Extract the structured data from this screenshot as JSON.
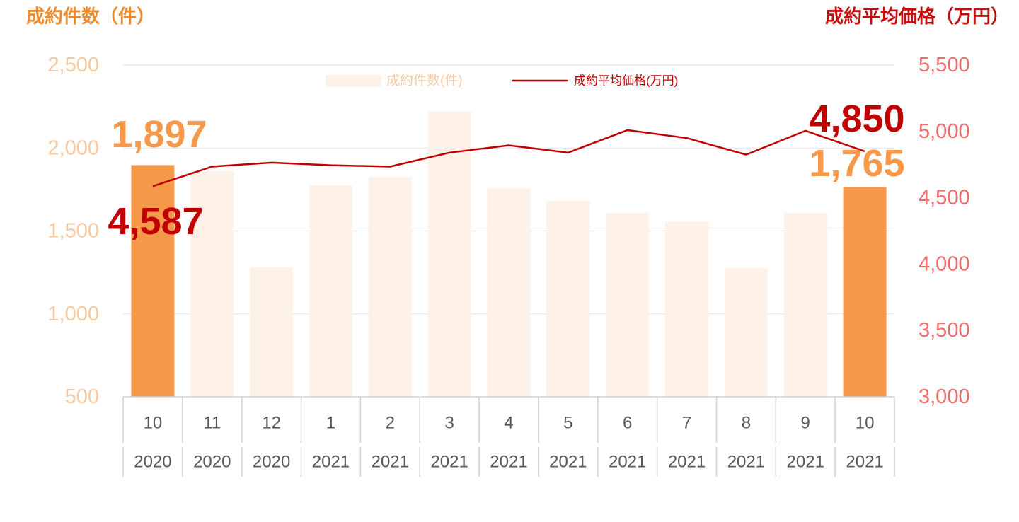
{
  "header": {
    "left_title": "成約件数（件）",
    "right_title": "成約平均価格（万円）"
  },
  "colors": {
    "highlight_bar": "#f5984a",
    "faded_bar": "#fdf1e8",
    "line": "#c00000",
    "left_axis": "#f8c9a0",
    "right_axis": "#f26b6b",
    "left_title": "#ed8b2c",
    "right_title": "#c50f0f",
    "callout_count": "#f5984a",
    "callout_price": "#c00000"
  },
  "chart_data": {
    "type": "bar",
    "categories": [
      {
        "month": "10",
        "year": "2020"
      },
      {
        "month": "11",
        "year": "2020"
      },
      {
        "month": "12",
        "year": "2020"
      },
      {
        "month": "1",
        "year": "2021"
      },
      {
        "month": "2",
        "year": "2021"
      },
      {
        "month": "3",
        "year": "2021"
      },
      {
        "month": "4",
        "year": "2021"
      },
      {
        "month": "5",
        "year": "2021"
      },
      {
        "month": "6",
        "year": "2021"
      },
      {
        "month": "7",
        "year": "2021"
      },
      {
        "month": "8",
        "year": "2021"
      },
      {
        "month": "9",
        "year": "2021"
      },
      {
        "month": "10",
        "year": "2021"
      }
    ],
    "series": [
      {
        "name": "成約件数(件)",
        "type": "bar",
        "axis": "left",
        "values": [
          1897,
          1860,
          1280,
          1775,
          1825,
          2220,
          1755,
          1680,
          1610,
          1555,
          1275,
          1610,
          1765
        ],
        "highlighted": [
          0,
          12
        ]
      },
      {
        "name": "成約平均価格(万円)",
        "type": "line",
        "axis": "right",
        "values": [
          4587,
          4735,
          4765,
          4745,
          4735,
          4840,
          4895,
          4840,
          5010,
          4950,
          4825,
          5005,
          4850
        ]
      }
    ],
    "left_axis": {
      "ylim": [
        500,
        2500
      ],
      "ticks": [
        "500",
        "1,000",
        "1,500",
        "2,000",
        "2,500"
      ]
    },
    "right_axis": {
      "ylim": [
        3000,
        5500
      ],
      "ticks": [
        "3,000",
        "3,500",
        "4,000",
        "4,500",
        "5,000",
        "5,500"
      ]
    },
    "grid": true,
    "legend_position": "top-center",
    "callouts": [
      {
        "text": "1,897",
        "series": "count",
        "index": 0
      },
      {
        "text": "4,587",
        "series": "price",
        "index": 0
      },
      {
        "text": "4,850",
        "series": "price",
        "index": 12
      },
      {
        "text": "1,765",
        "series": "count",
        "index": 12
      }
    ]
  }
}
